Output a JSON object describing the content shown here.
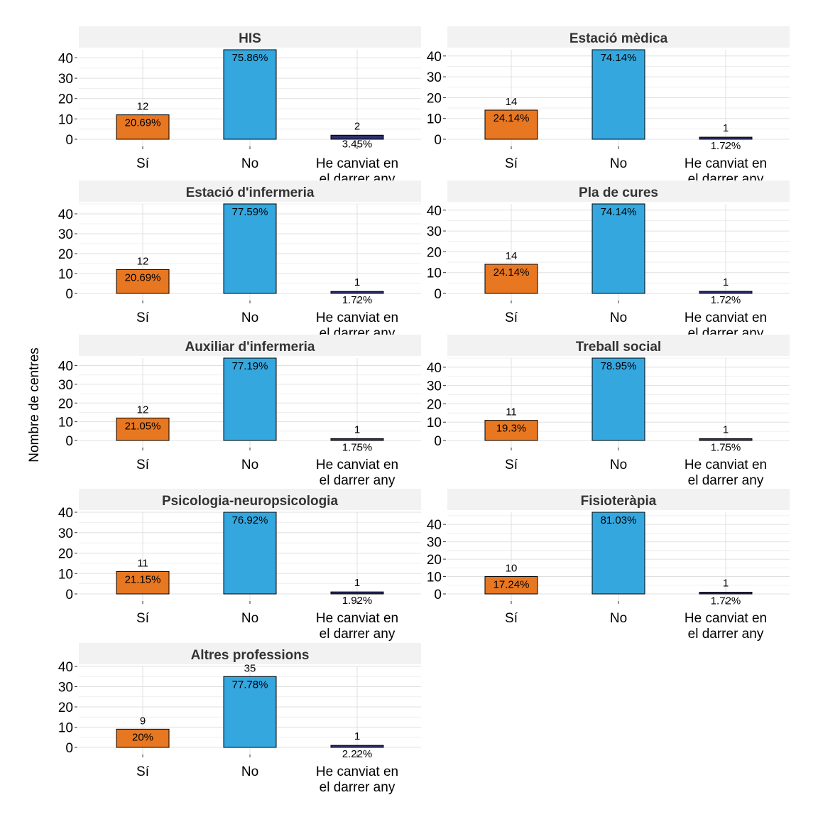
{
  "chart_data": {
    "type": "bar",
    "ylabel": "Nombre de centres",
    "categories": [
      "Sí",
      "No",
      "He canviat en|el darrer any"
    ],
    "colors": {
      "Sí": "#E87722",
      "No": "#35A7DF",
      "He canviat en|el darrer any": "#2E2F6E"
    },
    "grid": true,
    "panels": [
      {
        "title": "HIS",
        "ylim": [
          0,
          44
        ],
        "yticks": [
          0,
          10,
          20,
          30,
          40
        ],
        "values": [
          12,
          44,
          2
        ],
        "count_labels": [
          "12",
          "",
          "2"
        ],
        "pct_labels": [
          "20.69%",
          "75.86%",
          "3.45%"
        ]
      },
      {
        "title": "Estació mèdica",
        "ylim": [
          0,
          43
        ],
        "yticks": [
          0,
          10,
          20,
          30,
          40
        ],
        "values": [
          14,
          43,
          1
        ],
        "count_labels": [
          "14",
          "",
          "1"
        ],
        "pct_labels": [
          "24.14%",
          "74.14%",
          "1.72%"
        ]
      },
      {
        "title": "Estació d'infermeria",
        "ylim": [
          0,
          45
        ],
        "yticks": [
          0,
          10,
          20,
          30,
          40
        ],
        "values": [
          12,
          45,
          1
        ],
        "count_labels": [
          "12",
          "",
          "1"
        ],
        "pct_labels": [
          "20.69%",
          "77.59%",
          "1.72%"
        ]
      },
      {
        "title": "Pla de cures",
        "ylim": [
          0,
          43
        ],
        "yticks": [
          0,
          10,
          20,
          30,
          40
        ],
        "values": [
          14,
          43,
          1
        ],
        "count_labels": [
          "14",
          "",
          "1"
        ],
        "pct_labels": [
          "24.14%",
          "74.14%",
          "1.72%"
        ]
      },
      {
        "title": "Auxiliar d'infermeria",
        "ylim": [
          0,
          44
        ],
        "yticks": [
          0,
          10,
          20,
          30,
          40
        ],
        "values": [
          12,
          44,
          1
        ],
        "count_labels": [
          "12",
          "",
          "1"
        ],
        "pct_labels": [
          "21.05%",
          "77.19%",
          "1.75%"
        ]
      },
      {
        "title": "Treball social",
        "ylim": [
          0,
          45
        ],
        "yticks": [
          0,
          10,
          20,
          30,
          40
        ],
        "values": [
          11,
          45,
          1
        ],
        "count_labels": [
          "11",
          "",
          "1"
        ],
        "pct_labels": [
          "19.3%",
          "78.95%",
          "1.75%"
        ]
      },
      {
        "title": "Psicologia-neuropsicologia",
        "ylim": [
          0,
          40
        ],
        "yticks": [
          0,
          10,
          20,
          30,
          40
        ],
        "values": [
          11,
          40,
          1
        ],
        "count_labels": [
          "11",
          "",
          "1"
        ],
        "pct_labels": [
          "21.15%",
          "76.92%",
          "1.92%"
        ]
      },
      {
        "title": "Fisioteràpia",
        "ylim": [
          0,
          47
        ],
        "yticks": [
          0,
          10,
          20,
          30,
          40
        ],
        "values": [
          10,
          47,
          1
        ],
        "count_labels": [
          "10",
          "",
          "1"
        ],
        "pct_labels": [
          "17.24%",
          "81.03%",
          "1.72%"
        ]
      },
      {
        "title": "Altres professions",
        "ylim": [
          0,
          40
        ],
        "yticks": [
          0,
          10,
          20,
          30,
          40
        ],
        "values": [
          9,
          35,
          1
        ],
        "count_labels": [
          "9",
          "35",
          "1"
        ],
        "pct_labels": [
          "20%",
          "77.78%",
          "2.22%"
        ]
      }
    ]
  }
}
